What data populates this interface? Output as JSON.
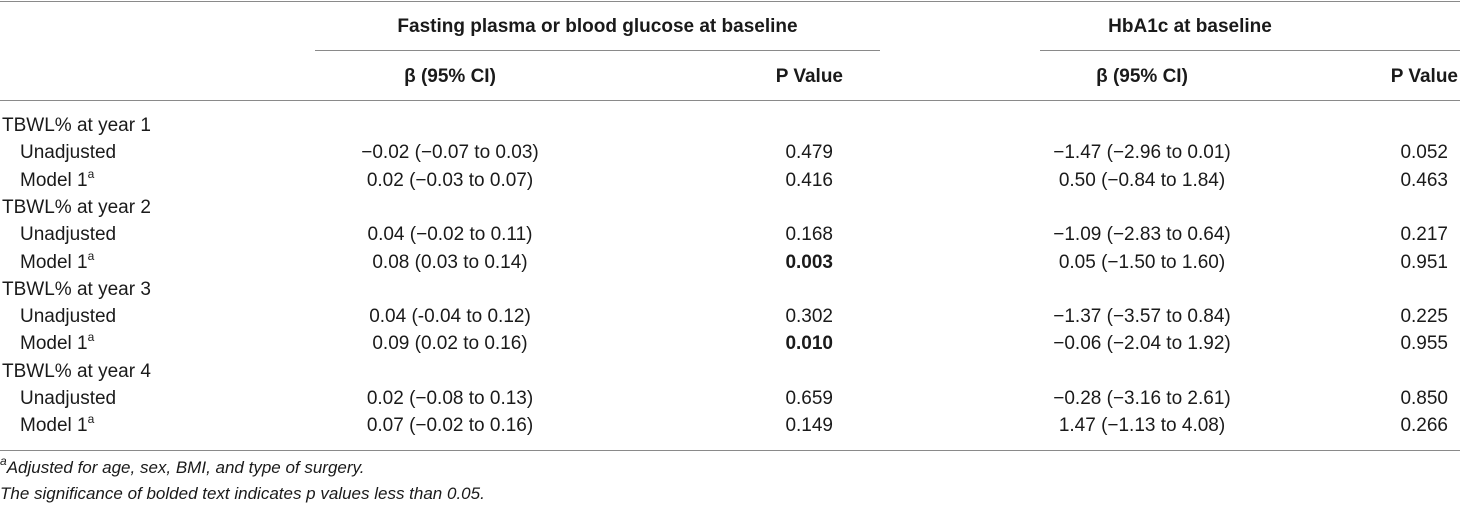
{
  "table": {
    "group_headers": [
      "Fasting plasma or blood glucose at baseline",
      "HbA1c at baseline"
    ],
    "sub_headers": [
      "β (95% CI)",
      "P Value",
      "β (95% CI)",
      "P Value"
    ],
    "rows": [
      {
        "label": "TBWL% at year 1",
        "section": true
      },
      {
        "label": "Unadjusted",
        "sup": "",
        "fg_beta": "−0.02 (−0.07 to 0.03)",
        "fg_p": "0.479",
        "fg_p_bold": false,
        "hb_beta": "−1.47 (−2.96 to 0.01)",
        "hb_p": "0.052"
      },
      {
        "label": "Model 1",
        "sup": "a",
        "fg_beta": "0.02 (−0.03 to 0.07)",
        "fg_p": "0.416",
        "fg_p_bold": false,
        "hb_beta": "0.50 (−0.84 to 1.84)",
        "hb_p": "0.463"
      },
      {
        "label": "TBWL% at year 2",
        "section": true
      },
      {
        "label": "Unadjusted",
        "sup": "",
        "fg_beta": "0.04 (−0.02 to 0.11)",
        "fg_p": "0.168",
        "fg_p_bold": false,
        "hb_beta": "−1.09 (−2.83 to 0.64)",
        "hb_p": "0.217"
      },
      {
        "label": "Model 1",
        "sup": "a",
        "fg_beta": "0.08 (0.03 to 0.14)",
        "fg_p": "0.003",
        "fg_p_bold": true,
        "hb_beta": "0.05 (−1.50 to 1.60)",
        "hb_p": "0.951"
      },
      {
        "label": "TBWL% at year 3",
        "section": true
      },
      {
        "label": "Unadjusted",
        "sup": "",
        "fg_beta": "0.04 (-0.04 to 0.12)",
        "fg_p": "0.302",
        "fg_p_bold": false,
        "hb_beta": "−1.37 (−3.57 to 0.84)",
        "hb_p": "0.225"
      },
      {
        "label": "Model 1",
        "sup": "a",
        "fg_beta": "0.09 (0.02 to 0.16)",
        "fg_p": "0.010",
        "fg_p_bold": true,
        "hb_beta": "−0.06 (−2.04 to 1.92)",
        "hb_p": "0.955"
      },
      {
        "label": "TBWL% at year 4",
        "section": true
      },
      {
        "label": "Unadjusted",
        "sup": "",
        "fg_beta": "0.02 (−0.08 to 0.13)",
        "fg_p": "0.659",
        "fg_p_bold": false,
        "hb_beta": "−0.28 (−3.16 to 2.61)",
        "hb_p": "0.850"
      },
      {
        "label": "Model 1",
        "sup": "a",
        "fg_beta": "0.07 (−0.02 to 0.16)",
        "fg_p": "0.149",
        "fg_p_bold": false,
        "hb_beta": "1.47 (−1.13 to 4.08)",
        "hb_p": "0.266"
      }
    ]
  },
  "footnotes": {
    "a_marker": "a",
    "a_text": "Adjusted for age, sex, BMI, and type of surgery.",
    "bold_note": "The significance of bolded text indicates p values less than 0.05."
  }
}
